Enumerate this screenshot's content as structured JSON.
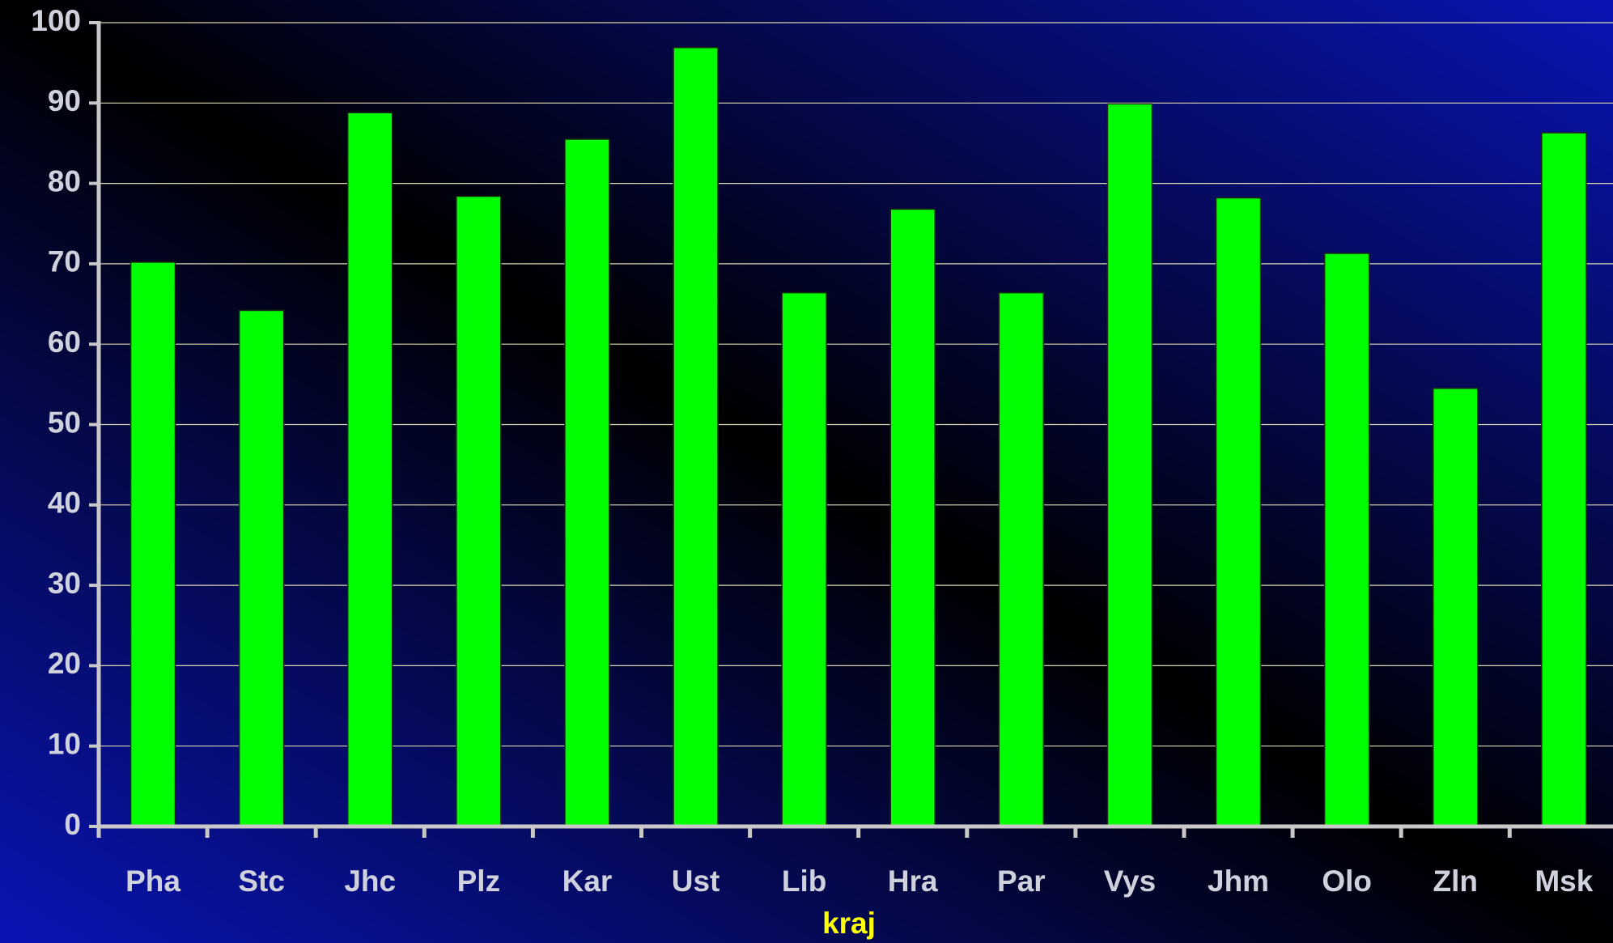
{
  "chart_data": {
    "type": "bar",
    "x_label": "kraj",
    "categories": [
      "Pha",
      "Stc",
      "Jhc",
      "Plz",
      "Kar",
      "Ust",
      "Lib",
      "Hra",
      "Par",
      "Vys",
      "Jhm",
      "Olo",
      "Zln",
      "Msk"
    ],
    "values": [
      70.2,
      64.2,
      88.8,
      78.4,
      85.5,
      96.9,
      66.4,
      76.8,
      66.4,
      89.9,
      78.2,
      71.3,
      54.5,
      86.3
    ],
    "color": "#00ff00",
    "ylim": [
      0,
      100
    ],
    "yticks": [
      0,
      10,
      20,
      30,
      40,
      50,
      60,
      70,
      80,
      90,
      100
    ],
    "grid": true
  }
}
